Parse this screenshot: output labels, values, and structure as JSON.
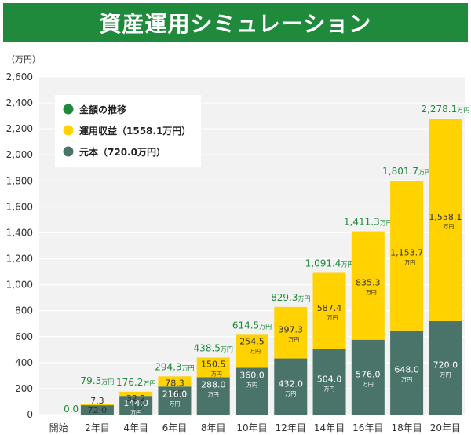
{
  "title": "資産運用シミュレーション",
  "chart_data": {
    "type": "bar",
    "stacked": true,
    "ylabel": "（万円）",
    "ylim": [
      0,
      2600
    ],
    "yticks": [
      0,
      200,
      400,
      600,
      800,
      1000,
      1200,
      1400,
      1600,
      1800,
      2000,
      2200,
      2400,
      2600
    ],
    "ytick_labels": [
      "0",
      "200",
      "400",
      "600",
      "800",
      "1,000",
      "1,200",
      "1,400",
      "1,600",
      "1,800",
      "2,000",
      "2,200",
      "2,400",
      "2,600"
    ],
    "categories": [
      "開始",
      "2年目",
      "4年目",
      "6年目",
      "8年目",
      "10年目",
      "12年目",
      "14年目",
      "16年目",
      "18年目",
      "20年目"
    ],
    "series": [
      {
        "name": "元本（720.0万円）",
        "color": "#4a7369",
        "values": [
          0,
          72.0,
          144.0,
          216.0,
          288.0,
          360.0,
          432.0,
          504.0,
          576.0,
          648.0,
          720.0
        ],
        "labels": [
          "",
          "72.0",
          "144.0",
          "216.0",
          "288.0",
          "360.0",
          "432.0",
          "504.0",
          "576.0",
          "648.0",
          "720.0"
        ]
      },
      {
        "name": "運用収益（1558.1万円）",
        "color": "#ffd200",
        "values": [
          0,
          7.3,
          32.2,
          78.3,
          150.5,
          254.5,
          397.3,
          587.4,
          835.3,
          1153.7,
          1558.1
        ],
        "labels": [
          "",
          "7.3",
          "32.2",
          "78.3",
          "150.5",
          "254.5",
          "397.3",
          "587.4",
          "835.3",
          "1,153.7",
          "1,558.1"
        ]
      }
    ],
    "totals": [
      0.0,
      79.3,
      176.2,
      294.3,
      438.5,
      614.5,
      829.3,
      1091.4,
      1411.3,
      1801.7,
      2278.1
    ],
    "total_labels": [
      "0.0",
      "79.3",
      "176.2",
      "294.3",
      "438.5",
      "614.5",
      "829.3",
      "1,091.4",
      "1,411.3",
      "1,801.7",
      "2,278.1"
    ],
    "unit": "万円",
    "legend": [
      {
        "label": "金額の推移",
        "color": "#1f8a3b"
      },
      {
        "label": "運用収益（1558.1万円）",
        "color": "#ffd200"
      },
      {
        "label": "元本（720.0万円）",
        "color": "#4a7369"
      }
    ],
    "legend_position": "top-left",
    "grid": true
  }
}
